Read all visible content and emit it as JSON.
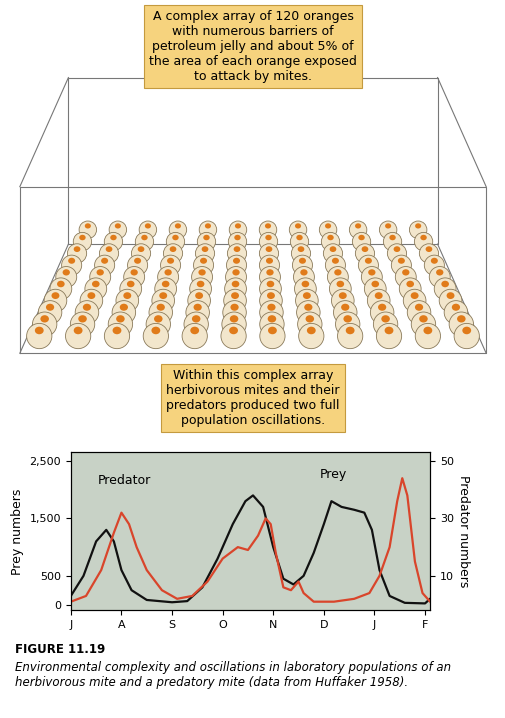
{
  "chart_data": {
    "type": "line",
    "xlim": [
      0,
      7.1
    ],
    "xticks": [
      {
        "value": 0,
        "label": "J"
      },
      {
        "value": 1,
        "label": "A"
      },
      {
        "value": 2,
        "label": "S"
      },
      {
        "value": 3,
        "label": "O"
      },
      {
        "value": 4,
        "label": "N"
      },
      {
        "value": 5,
        "label": "D"
      },
      {
        "value": 6,
        "label": "J"
      },
      {
        "value": 7,
        "label": "F"
      }
    ],
    "ylim": [
      -100,
      2650
    ],
    "yticks": [
      0,
      500,
      {
        "value": 1500,
        "label": "1,500"
      },
      {
        "value": 2500,
        "label": "2,500"
      }
    ],
    "y2lim": [
      -2,
      53
    ],
    "y2ticks": [
      10,
      30,
      50
    ],
    "y_label": "Prey numbers",
    "y2_label": "Predator numbers",
    "series": [
      {
        "name": "Predator",
        "color": "#d9452b",
        "axis": "y2",
        "x": [
          0,
          0.3,
          0.6,
          0.85,
          1.0,
          1.15,
          1.3,
          1.5,
          1.8,
          2.1,
          2.4,
          2.7,
          3.0,
          3.3,
          3.5,
          3.7,
          3.85,
          3.95,
          4.05,
          4.2,
          4.35,
          4.5,
          4.6,
          4.8,
          5.2,
          5.6,
          5.9,
          6.1,
          6.3,
          6.45,
          6.55,
          6.65,
          6.8,
          6.95,
          7.1
        ],
        "values": [
          1,
          3,
          12,
          25,
          32,
          28,
          20,
          12,
          5,
          2,
          3,
          8,
          16,
          20,
          19,
          24,
          30,
          28,
          18,
          6,
          5,
          8,
          4,
          1,
          1,
          2,
          4,
          10,
          20,
          36,
          44,
          38,
          15,
          4,
          1
        ]
      },
      {
        "name": "Prey",
        "color": "#111111",
        "x": [
          0,
          0.25,
          0.5,
          0.7,
          0.85,
          1.0,
          1.2,
          1.5,
          2.0,
          2.3,
          2.6,
          2.9,
          3.2,
          3.45,
          3.6,
          3.8,
          4.0,
          4.2,
          4.4,
          4.6,
          4.8,
          5.0,
          5.15,
          5.35,
          5.6,
          5.8,
          5.95,
          6.1,
          6.3,
          6.6,
          7.0,
          7.1
        ],
        "values": [
          150,
          500,
          1100,
          1300,
          1100,
          600,
          250,
          80,
          40,
          60,
          300,
          800,
          1400,
          1800,
          1900,
          1700,
          1000,
          450,
          350,
          500,
          900,
          1400,
          1800,
          1700,
          1650,
          1600,
          1300,
          600,
          150,
          30,
          20,
          100
        ]
      }
    ]
  },
  "callouts": [
    {
      "text": "A complex array of 120 oranges with numerous barriers of petroleum jelly and about 5% of the area of each orange exposed to attack by mites."
    },
    {
      "text": "Within this complex array herbivorous mites and their predators produced two full population oscillations."
    }
  ],
  "caption": {
    "label": "FIGURE 11.19",
    "text": "Environmental complexity and oscillations in laboratory populations of an herbivorous mite and a predatory mite (data from Huffaker 1958)."
  }
}
